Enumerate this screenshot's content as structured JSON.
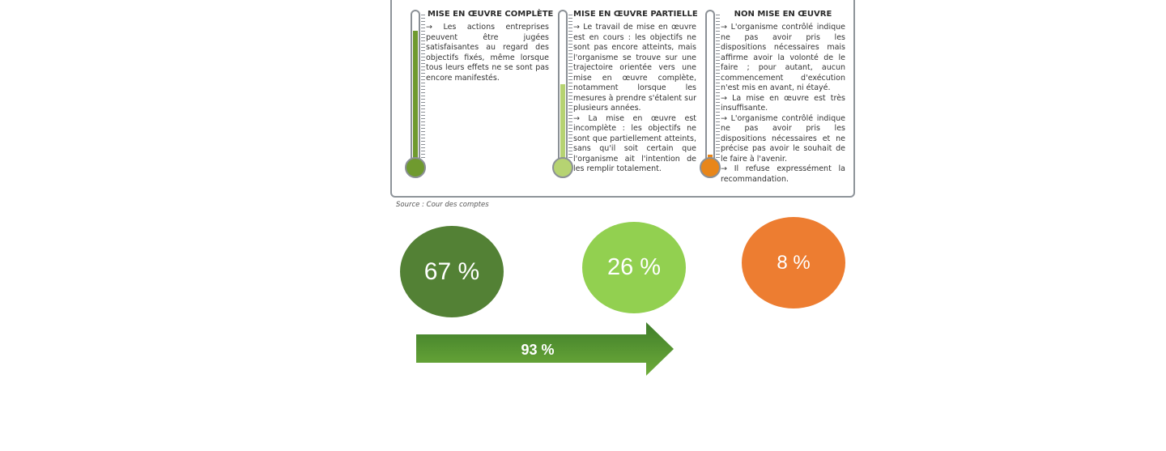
{
  "columns": [
    {
      "title": "MISE EN ŒUVRE COMPLÈTE",
      "paragraphs": [
        "→ Les actions entreprises peuvent être jugées satisfaisantes au regard des objectifs fixés, même lorsque tous leurs effets ne se sont pas encore manifestés."
      ],
      "fill_level": 0.87,
      "fill_color": "#6f9a2f",
      "bulb_color": "#6f9a2f"
    },
    {
      "title": "MISE EN ŒUVRE PARTIELLE",
      "paragraphs": [
        "→ Le travail de mise en œuvre est en cours : les objectifs ne sont pas encore atteints, mais l'organisme se trouve sur une trajectoire orientée vers une mise en œuvre complète, notamment lorsque les mesures à prendre s'étalent sur plusieurs années.",
        "→ La mise en œuvre est incomplète : les objectifs ne sont que partiellement atteints, sans qu'il soit certain que l'organisme ait l'intention de les remplir totalement."
      ],
      "fill_level": 0.52,
      "fill_color": "#b6d372",
      "bulb_color": "#b6d372"
    },
    {
      "title": "NON MISE EN ŒUVRE",
      "paragraphs": [
        "→ L'organisme contrôlé indique ne pas avoir pris les dispositions nécessaires mais affirme avoir la volonté de le faire ; pour autant, aucun commencement d'exécution n'est mis en avant, ni étayé.",
        "→ La mise en œuvre est très insuffisante.",
        "→ L'organisme contrôlé indique ne pas avoir pris les dispositions nécessaires et ne précise pas avoir le souhait de le faire à l'avenir.",
        "→ Il refuse expressément la recommandation."
      ],
      "fill_level": 0.06,
      "fill_color": "#e8861a",
      "bulb_color": "#e8861a"
    }
  ],
  "source": "Source : Cour des comptes",
  "circles": [
    {
      "label": "67 %",
      "color": "#538135"
    },
    {
      "label": "26 %",
      "color": "#92d050"
    },
    {
      "label": "8 %",
      "color": "#ed7d31"
    }
  ],
  "arrow": {
    "label": "93 %",
    "color_top": "#3f7d2a",
    "color_bottom": "#6fad3a"
  }
}
